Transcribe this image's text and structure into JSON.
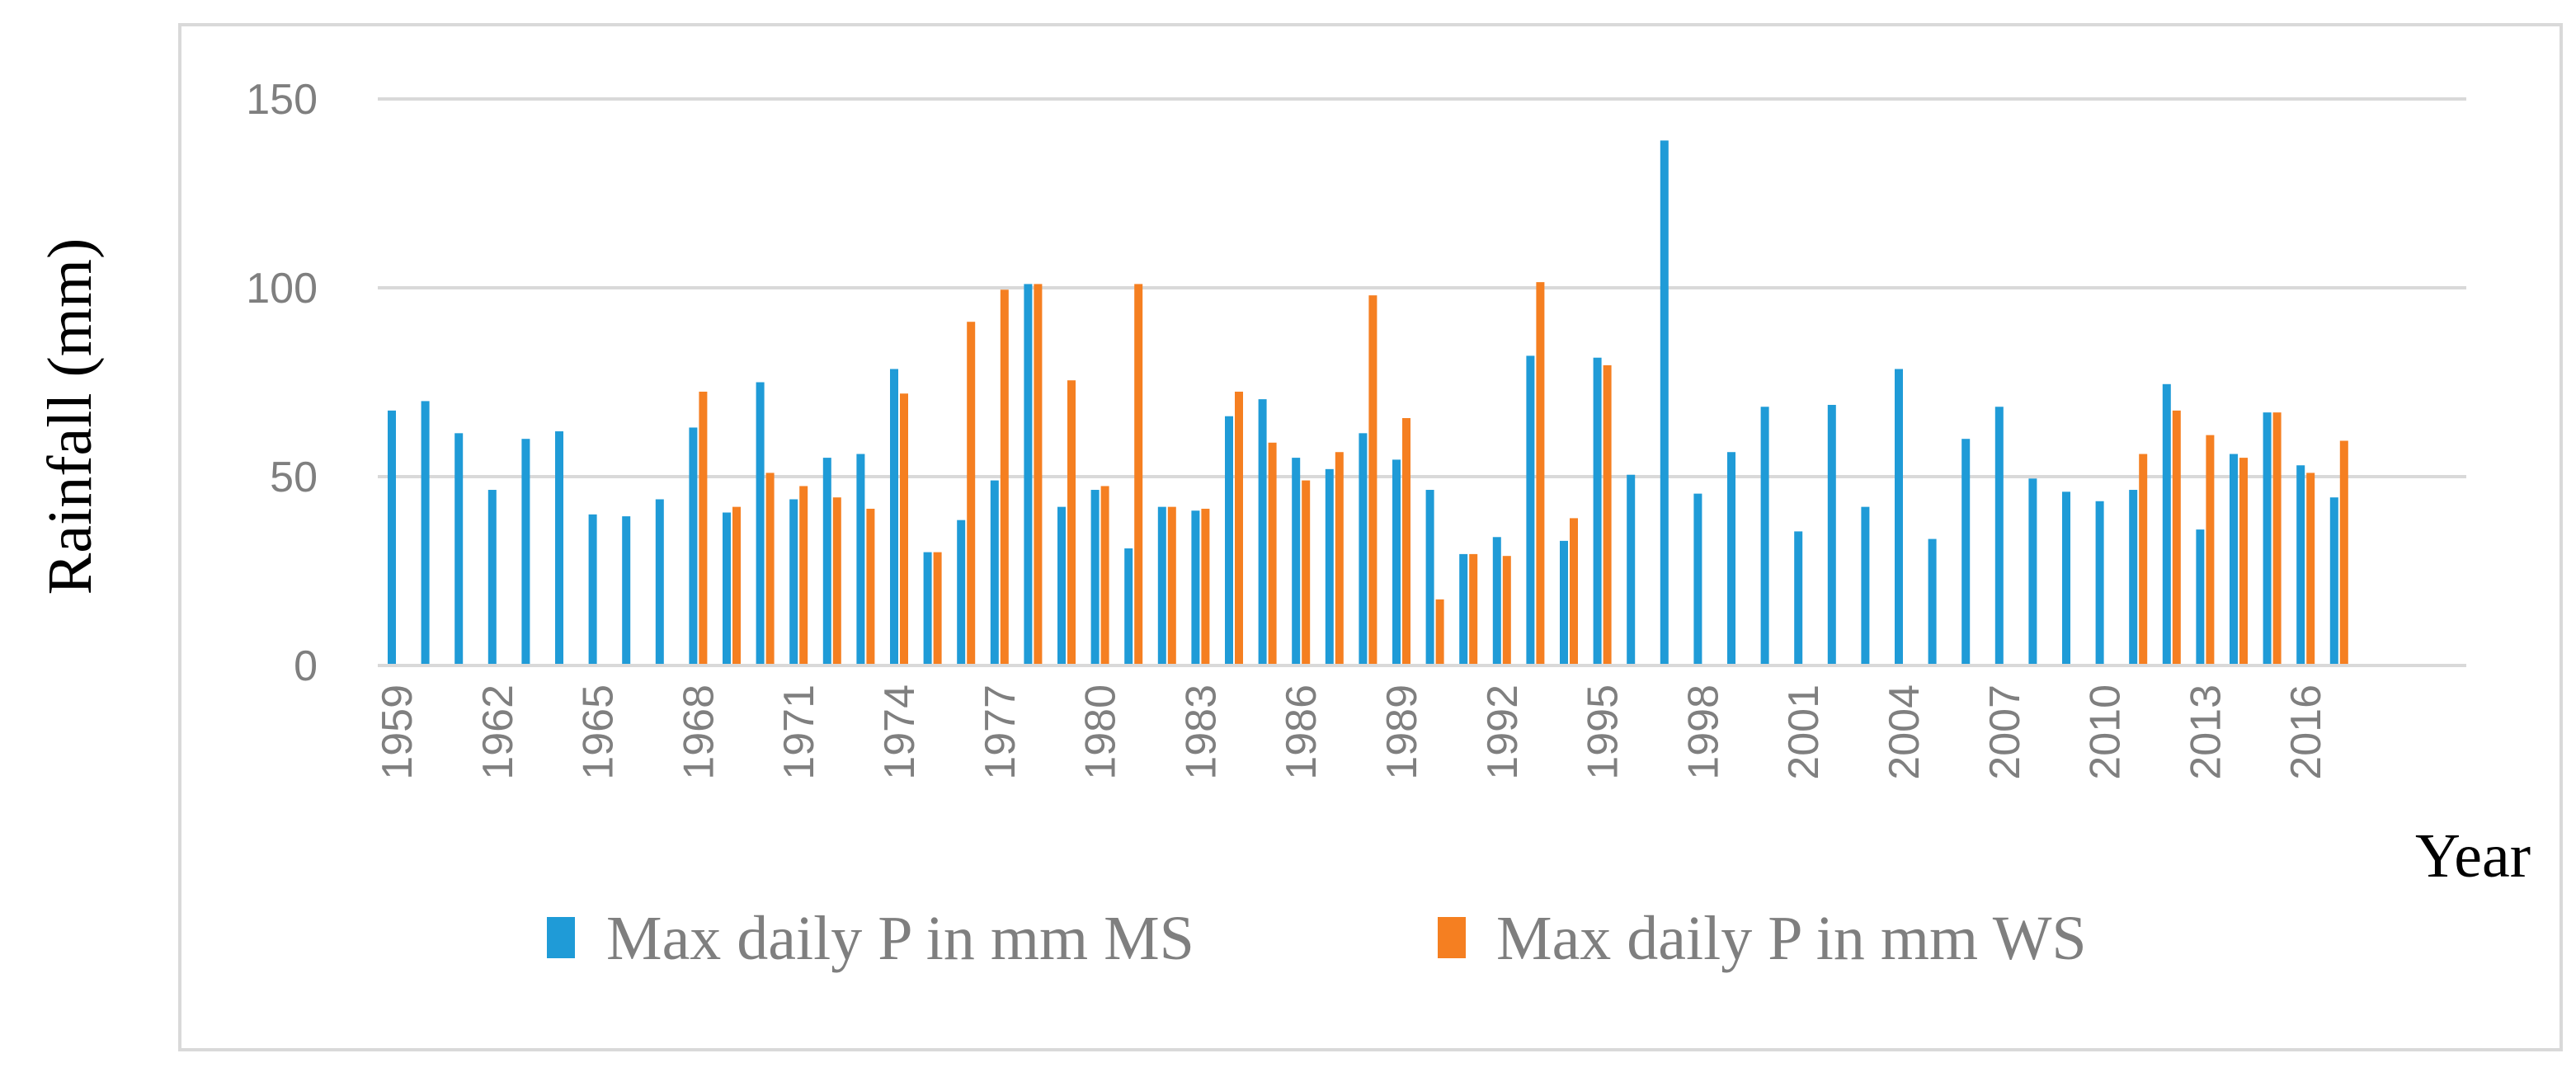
{
  "chart_data": {
    "type": "bar",
    "title": "",
    "xlabel": "Year",
    "ylabel": "Rainfall (mm)",
    "ylim": [
      0,
      150
    ],
    "yticks": [
      0,
      50,
      100,
      150
    ],
    "grid": true,
    "legend_position": "bottom",
    "categories": [
      "1959",
      "1960",
      "1961",
      "1962",
      "1963",
      "1964",
      "1965",
      "1966",
      "1967",
      "1968",
      "1969",
      "1970",
      "1971",
      "1972",
      "1973",
      "1974",
      "1975",
      "1976",
      "1977",
      "1978",
      "1979",
      "1980",
      "1981",
      "1982",
      "1983",
      "1984",
      "1985",
      "1986",
      "1987",
      "1988",
      "1989",
      "1990",
      "1991",
      "1992",
      "1993",
      "1994",
      "1995",
      "1996",
      "1997",
      "1998",
      "1999",
      "2000",
      "2001",
      "2002",
      "2003",
      "2004",
      "2005",
      "2006",
      "2007",
      "2008",
      "2009",
      "2010",
      "2011",
      "2012",
      "2013",
      "2014",
      "2015",
      "2016",
      "2017"
    ],
    "x_tick_labels": [
      "1959",
      "1962",
      "1965",
      "1968",
      "1971",
      "1974",
      "1977",
      "1980",
      "1983",
      "1986",
      "1989",
      "1992",
      "1995",
      "1998",
      "2001",
      "2004",
      "2007",
      "2010",
      "2013",
      "2016"
    ],
    "series": [
      {
        "name": "Max daily P in mm MS",
        "color": "#1f9bd7",
        "values": [
          67.5,
          70,
          61.5,
          46.5,
          60,
          62,
          40,
          39.5,
          44,
          63,
          40.5,
          75,
          44,
          55,
          56,
          78.5,
          30,
          38.5,
          49,
          101,
          42,
          46.5,
          31,
          42,
          41,
          66,
          70.5,
          55,
          52,
          61.5,
          54.5,
          46.5,
          29.5,
          34,
          82,
          33,
          81.5,
          50.5,
          139,
          45.5,
          56.5,
          68.5,
          35.5,
          69,
          42,
          78.5,
          33.5,
          60,
          68.5,
          49.5,
          46,
          43.5,
          46.5,
          74.5,
          36,
          56,
          67,
          53,
          44.5
        ]
      },
      {
        "name": "Max daily P in mm WS",
        "color": "#f57f21",
        "values": [
          null,
          null,
          null,
          null,
          null,
          null,
          null,
          null,
          null,
          72.5,
          42,
          51,
          47.5,
          44.5,
          41.5,
          72,
          30,
          91,
          99.5,
          101,
          75.5,
          47.5,
          101,
          42,
          41.5,
          72.5,
          59,
          49,
          56.5,
          98,
          65.5,
          17.5,
          29.5,
          29,
          101.5,
          39,
          79.5,
          null,
          null,
          null,
          null,
          null,
          null,
          null,
          null,
          null,
          null,
          null,
          null,
          null,
          null,
          null,
          56,
          67.5,
          61,
          55,
          67,
          51,
          59.5
        ]
      }
    ]
  }
}
